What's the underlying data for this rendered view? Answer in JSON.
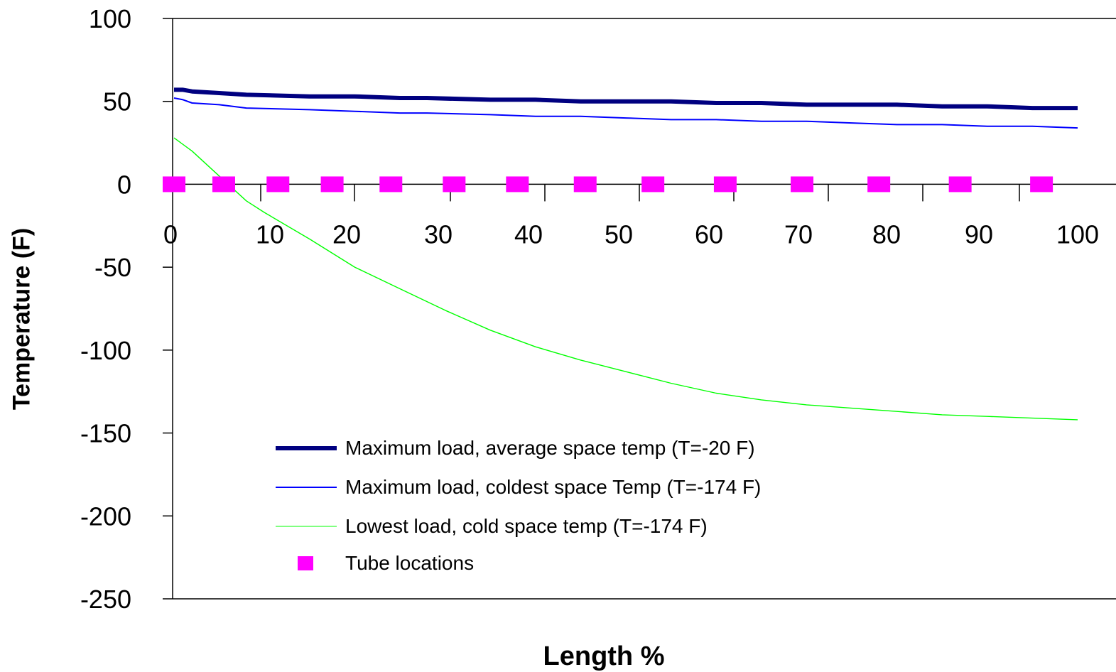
{
  "chart_data": {
    "type": "line",
    "xlabel": "Length %",
    "ylabel": "Temperature (F)",
    "xlim": [
      0,
      100
    ],
    "ylim": [
      -250,
      100
    ],
    "yticks": [
      100,
      50,
      0,
      -50,
      -100,
      -150,
      -200,
      -250
    ],
    "xticks": [
      0,
      10,
      20,
      30,
      40,
      50,
      60,
      70,
      80,
      90,
      100
    ],
    "grid": false,
    "legend_position": "lower-left inside plot",
    "series": [
      {
        "name": "Maximum load, average space temp (T=-20 F)",
        "color": "#000080",
        "style": "thick-line",
        "x": [
          0,
          1,
          2,
          5,
          8,
          15,
          20,
          25,
          28,
          35,
          40,
          45,
          50,
          55,
          60,
          65,
          70,
          75,
          80,
          85,
          90,
          95,
          100
        ],
        "y": [
          57,
          57,
          56,
          55,
          54,
          53,
          53,
          52,
          52,
          51,
          51,
          50,
          50,
          50,
          49,
          49,
          48,
          48,
          48,
          47,
          47,
          46,
          46
        ]
      },
      {
        "name": "Maximum load, coldest space Temp (T=-174 F)",
        "color": "#0000ff",
        "style": "thin-line",
        "x": [
          0,
          1,
          2,
          5,
          8,
          15,
          20,
          25,
          28,
          35,
          40,
          45,
          50,
          55,
          60,
          65,
          70,
          75,
          80,
          85,
          90,
          95,
          100
        ],
        "y": [
          52,
          51,
          49,
          48,
          46,
          45,
          44,
          43,
          43,
          42,
          41,
          41,
          40,
          39,
          39,
          38,
          38,
          37,
          36,
          36,
          35,
          35,
          34
        ]
      },
      {
        "name": "Lowest load, cold space temp (T=-174 F)",
        "color": "#00ff00",
        "style": "thin-line",
        "x": [
          0,
          2,
          5,
          8,
          10,
          15,
          20,
          25,
          30,
          35,
          40,
          45,
          50,
          55,
          60,
          65,
          70,
          75,
          80,
          85,
          90,
          95,
          100
        ],
        "y": [
          28,
          20,
          5,
          -10,
          -17,
          -33,
          -50,
          -63,
          -76,
          -88,
          -98,
          -106,
          -113,
          -120,
          -126,
          -130,
          -133,
          -135,
          -137,
          -139,
          -140,
          -141,
          -142
        ]
      },
      {
        "name": "Tube locations",
        "color": "#ff00ff",
        "style": "square-markers",
        "x": [
          0,
          5.5,
          11.5,
          17.5,
          24,
          31,
          38,
          45.5,
          53,
          61,
          69.5,
          78,
          87,
          96
        ],
        "y": [
          0,
          0,
          0,
          0,
          0,
          0,
          0,
          0,
          0,
          0,
          0,
          0,
          0,
          0
        ]
      }
    ]
  }
}
